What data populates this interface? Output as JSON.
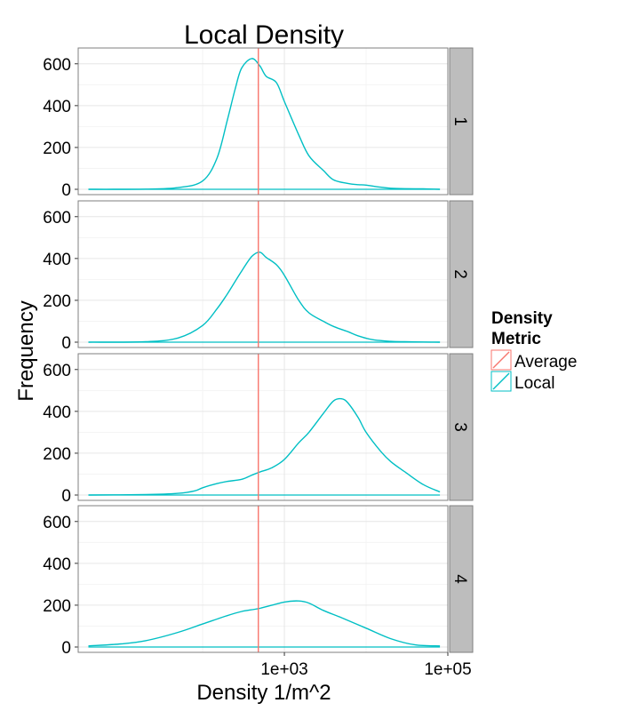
{
  "chart_data": {
    "type": "line",
    "title": "Local Density",
    "xlabel": "Density 1/m^2",
    "ylabel": "Frequency",
    "x_scale": "log10",
    "xlim": [
      3,
      100000
    ],
    "ylim": [
      0,
      650
    ],
    "x_ticks": [
      {
        "value": 1000,
        "label": "1e+03"
      },
      {
        "value": 100000,
        "label": "1e+05"
      }
    ],
    "y_ticks": [
      {
        "value": 0,
        "label": "0"
      },
      {
        "value": 200,
        "label": "200"
      },
      {
        "value": 400,
        "label": "400"
      },
      {
        "value": 600,
        "label": "600"
      }
    ],
    "grid": true,
    "legend": {
      "title_lines": [
        "Density",
        "Metric"
      ],
      "position": "right",
      "entries": [
        {
          "name": "Average",
          "color": "#F8766D"
        },
        {
          "name": "Local",
          "color": "#00BFC4"
        }
      ]
    },
    "average_line_x": 480,
    "panels": [
      {
        "strip_label": "1",
        "x": [
          4,
          20,
          50,
          100,
          150,
          200,
          250,
          300,
          400,
          500,
          600,
          800,
          1000,
          1500,
          2000,
          3000,
          4000,
          6000,
          8000,
          10000,
          15000,
          20000,
          30000,
          50000,
          80000
        ],
        "local": [
          0,
          1,
          8,
          40,
          150,
          330,
          480,
          580,
          625,
          590,
          540,
          510,
          420,
          260,
          160,
          90,
          45,
          28,
          22,
          20,
          10,
          5,
          3,
          2,
          0
        ]
      },
      {
        "strip_label": "2",
        "x": [
          4,
          20,
          50,
          100,
          150,
          200,
          300,
          400,
          500,
          600,
          800,
          1000,
          1500,
          2000,
          3000,
          4000,
          6000,
          8000,
          12000,
          20000,
          30000,
          50000,
          80000
        ],
        "local": [
          0,
          2,
          20,
          80,
          160,
          230,
          340,
          410,
          430,
          405,
          370,
          320,
          200,
          140,
          100,
          75,
          50,
          30,
          12,
          4,
          2,
          1,
          0
        ]
      },
      {
        "strip_label": "3",
        "x": [
          4,
          20,
          50,
          80,
          100,
          150,
          200,
          300,
          400,
          500,
          700,
          1000,
          1500,
          2000,
          3000,
          4000,
          5000,
          6000,
          8000,
          10000,
          15000,
          20000,
          30000,
          50000,
          80000
        ],
        "local": [
          0,
          2,
          8,
          20,
          35,
          55,
          65,
          75,
          95,
          110,
          130,
          170,
          250,
          300,
          390,
          450,
          460,
          440,
          370,
          300,
          210,
          160,
          110,
          50,
          15
        ]
      },
      {
        "strip_label": "4",
        "x": [
          4,
          10,
          20,
          50,
          100,
          200,
          300,
          500,
          1000,
          1500,
          2000,
          3000,
          5000,
          10000,
          20000,
          40000,
          80000
        ],
        "local": [
          5,
          15,
          30,
          70,
          110,
          150,
          170,
          185,
          215,
          220,
          210,
          175,
          140,
          90,
          40,
          10,
          5
        ]
      }
    ]
  }
}
